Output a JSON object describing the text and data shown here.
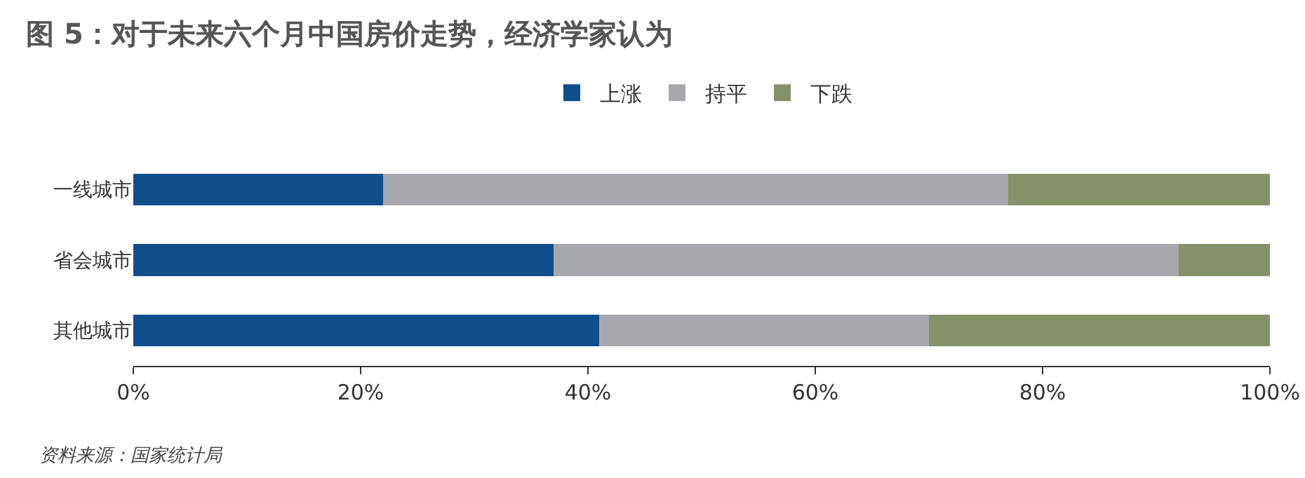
{
  "chart_data": {
    "type": "bar",
    "orientation": "horizontal",
    "stacked": true,
    "title": "图 5：对于未来六个月中国房价走势，经济学家认为",
    "categories": [
      "一线城市",
      "省会城市",
      "其他城市"
    ],
    "series": [
      {
        "name": "上涨",
        "color": "#114e8c",
        "values": [
          22,
          37,
          41
        ]
      },
      {
        "name": "持平",
        "color": "#a7a8ac",
        "values": [
          55,
          55,
          29
        ]
      },
      {
        "name": "下跌",
        "color": "#86916a",
        "values": [
          23,
          8,
          30
        ]
      }
    ],
    "xlim": [
      0,
      100
    ],
    "xticks": [
      {
        "value": 0,
        "label": "0%"
      },
      {
        "value": 20,
        "label": "20%"
      },
      {
        "value": 40,
        "label": "40%"
      },
      {
        "value": 60,
        "label": "60%"
      },
      {
        "value": 80,
        "label": "80%"
      },
      {
        "value": 100,
        "label": "100%"
      }
    ],
    "grid": false,
    "legend": "top",
    "annotations": [
      "资料来源：国家统计局"
    ]
  }
}
